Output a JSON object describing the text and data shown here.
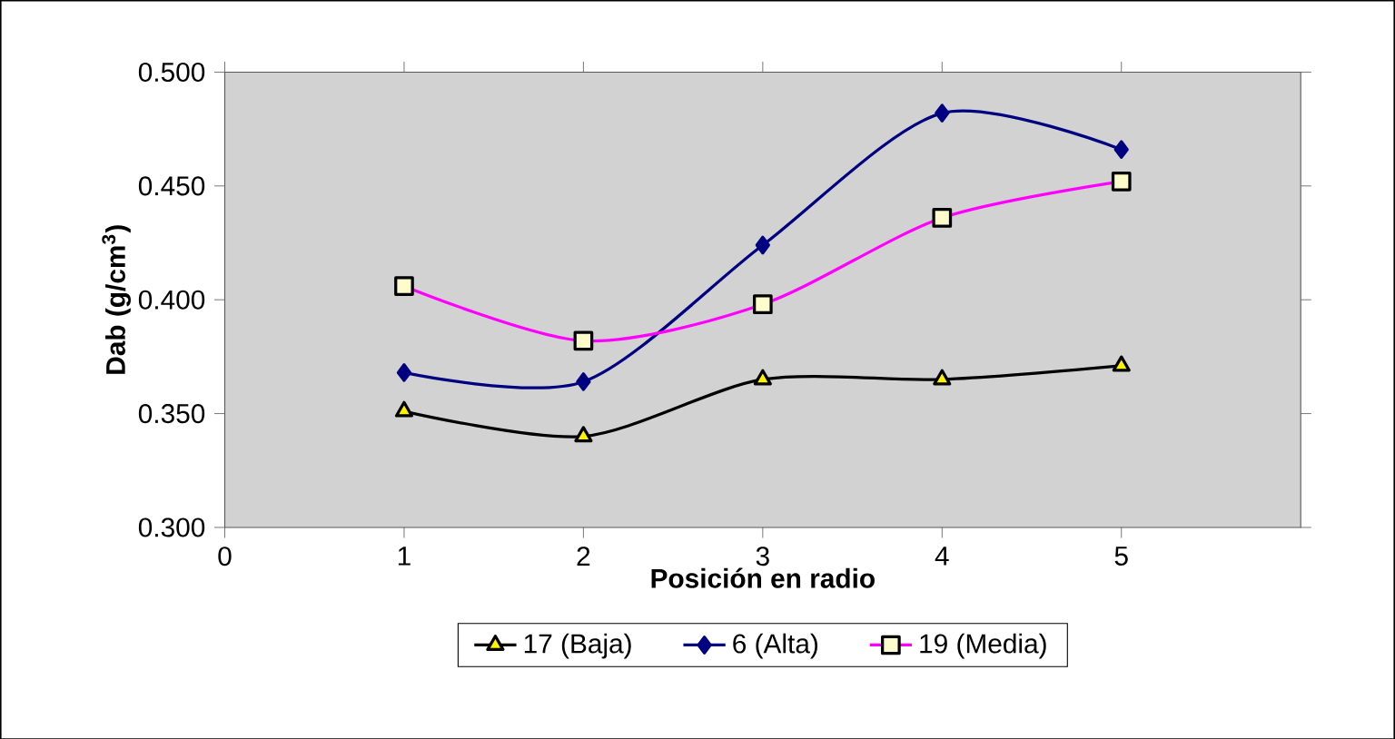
{
  "chart_data": {
    "type": "line",
    "xlabel": "Posición en radio",
    "ylabel": "Dab (g/cm$^{3}$)",
    "x": [
      1,
      2,
      3,
      4,
      5
    ],
    "series": [
      {
        "name": "17 (Baja)",
        "color": "#000000",
        "marker": "triangle",
        "values": [
          0.351,
          0.34,
          0.365,
          0.365,
          0.371
        ]
      },
      {
        "name": "6 (Alta)",
        "color": "#000080",
        "marker": "diamond",
        "values": [
          0.368,
          0.364,
          0.424,
          0.482,
          0.466
        ]
      },
      {
        "name": "19 (Media)",
        "color": "#ff00ff",
        "marker": "square",
        "values": [
          0.406,
          0.382,
          0.398,
          0.436,
          0.452
        ]
      }
    ],
    "xlim": [
      0,
      6
    ],
    "xticks": [
      0,
      1,
      2,
      3,
      4,
      5
    ],
    "ylim": [
      0.3,
      0.5
    ],
    "yticks": [
      {
        "value": 0.3,
        "label": "0.300"
      },
      {
        "value": 0.35,
        "label": "0.350"
      },
      {
        "value": 0.4,
        "label": "0.400"
      },
      {
        "value": 0.45,
        "label": "0.450"
      },
      {
        "value": 0.5,
        "label": "0.500"
      }
    ],
    "grid": false,
    "legend": "bottom"
  }
}
